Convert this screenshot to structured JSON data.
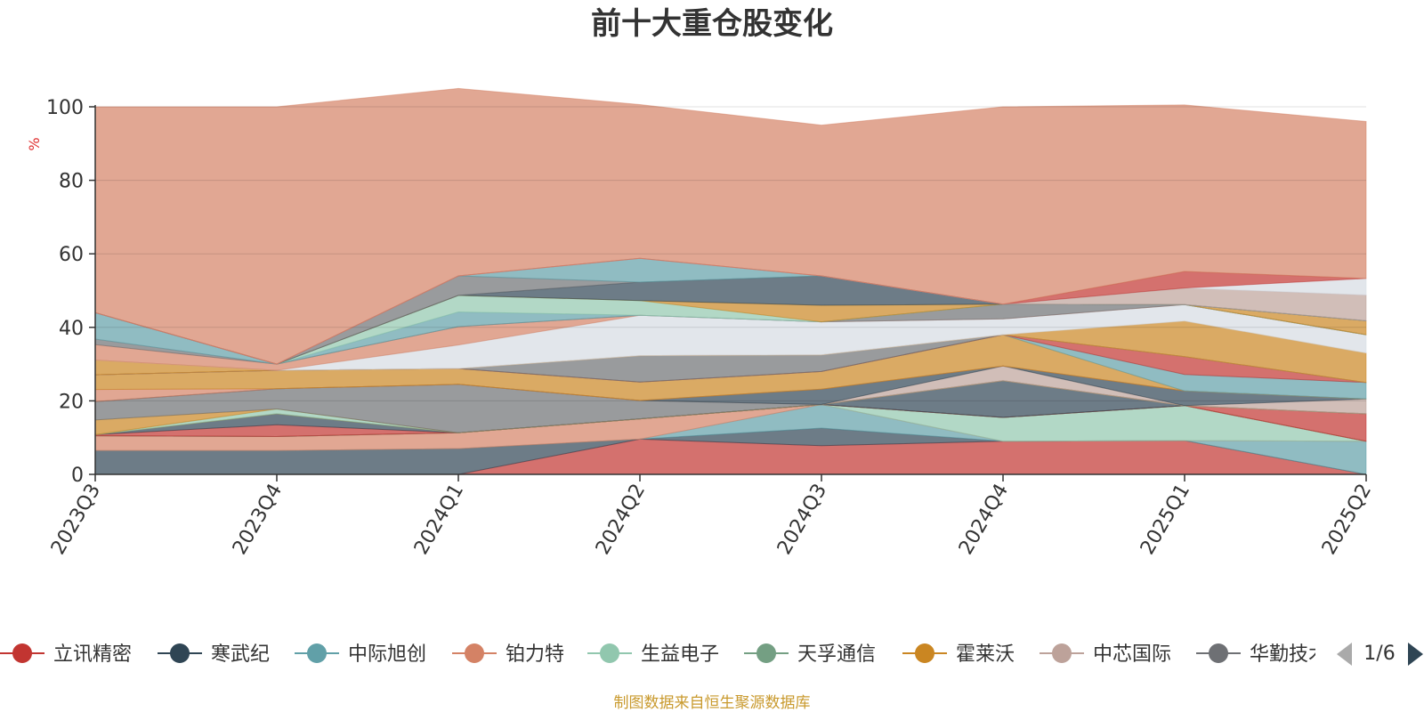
{
  "chart_data": {
    "type": "area",
    "stacked": true,
    "title": "前十大重仓股变化",
    "ylabel": "%",
    "ylim": [
      0,
      100
    ],
    "yticks": [
      0,
      20,
      40,
      60,
      80,
      100
    ],
    "grid": true,
    "categories": [
      "2023Q3",
      "2023Q4",
      "2024Q1",
      "2024Q2",
      "2024Q3",
      "2024Q4",
      "2025Q1",
      "2025Q2"
    ],
    "series": [
      {
        "name": "立讯精密",
        "color": "#c23531",
        "values": [
          0,
          0,
          0,
          9.6,
          7.8,
          9.0,
          9.2,
          0
        ]
      },
      {
        "name": "寒武纪",
        "color": "#2f4554",
        "values": [
          6.5,
          6.5,
          7.0,
          0,
          4.8,
          0,
          0,
          0
        ]
      },
      {
        "name": "中际旭创",
        "color": "#61a0a8",
        "values": [
          0,
          0,
          0,
          0,
          6.4,
          0,
          0,
          9.0
        ]
      },
      {
        "name": "铂力特",
        "color": "#d48265",
        "values": [
          4.0,
          3.8,
          4.3,
          5.5,
          0,
          0,
          0,
          0
        ]
      },
      {
        "name": "生益电子",
        "color": "#91c7ae",
        "values": [
          0,
          0,
          0,
          0,
          0,
          6.5,
          9.5,
          0
        ]
      },
      {
        "name": "天孚通信",
        "color": "#749f83",
        "values": [
          0,
          0,
          0,
          0,
          0,
          0,
          0,
          0
        ]
      },
      {
        "name": "霍莱沃",
        "color": "#ca8622",
        "values": [
          0,
          0,
          0,
          0,
          0,
          0,
          0,
          0
        ]
      },
      {
        "name": "中芯国际",
        "color": "#bda29a",
        "values": [
          0,
          0,
          0,
          0,
          0,
          0,
          0,
          0
        ]
      },
      {
        "name": "华勤技术",
        "color": "#6e7074",
        "values": [
          0,
          0,
          0,
          0,
          0,
          0,
          0,
          0
        ]
      },
      {
        "name": "—",
        "color": "#c23531",
        "values": [
          0.3,
          3.2,
          0,
          0,
          0,
          0,
          0,
          7.5
        ]
      },
      {
        "name": "—",
        "color": "#2f4554",
        "values": [
          0,
          3.0,
          0,
          0,
          0,
          10.0,
          0,
          0
        ]
      },
      {
        "name": "—",
        "color": "#ca8622",
        "values": [
          0,
          0,
          0,
          0,
          0,
          0,
          0,
          0
        ]
      },
      {
        "name": "—",
        "color": "#91c7ae",
        "values": [
          0,
          1.3,
          0,
          0,
          0,
          0,
          0,
          0
        ]
      },
      {
        "name": "—",
        "color": "#ca8622",
        "values": [
          4.0,
          0,
          0,
          0,
          0,
          0,
          0,
          0
        ]
      },
      {
        "name": "—",
        "color": "#6e7074",
        "values": [
          5.0,
          5.5,
          13.2,
          5.0,
          0,
          0,
          0,
          0
        ]
      },
      {
        "name": "—",
        "color": "#bda29a",
        "values": [
          0,
          0,
          0,
          0,
          0,
          4.0,
          0,
          4.0
        ]
      },
      {
        "name": "—",
        "color": "#2f4554",
        "values": [
          0,
          0,
          0,
          0,
          4.2,
          0,
          4.0,
          0
        ]
      },
      {
        "name": "—",
        "color": "#d48265",
        "values": [
          3.3,
          0,
          0,
          0,
          0,
          0,
          0,
          0
        ]
      },
      {
        "name": "—",
        "color": "#ca8622",
        "values": [
          4.0,
          5.0,
          4.3,
          5.0,
          4.8,
          8.5,
          0,
          0
        ]
      },
      {
        "name": "—",
        "color": "#61a0a8",
        "values": [
          0,
          0,
          0,
          0,
          0,
          0,
          4.5,
          4.5
        ]
      },
      {
        "name": "—",
        "color": "#c23531",
        "values": [
          0,
          0,
          0,
          0,
          0,
          0,
          4.8,
          0
        ]
      },
      {
        "name": "—",
        "color": "#6e7074",
        "values": [
          0,
          0,
          0,
          7.2,
          4.5,
          0,
          0,
          0
        ]
      },
      {
        "name": "—",
        "color": "#bda29a",
        "values": [
          0,
          0,
          0,
          0,
          0,
          0,
          0,
          0
        ]
      },
      {
        "name": "—",
        "color": "#ca8622",
        "values": [
          4.0,
          0,
          0,
          0,
          0,
          0,
          9.7,
          8.0
        ]
      },
      {
        "name": "—",
        "color": "#d5dbe3",
        "values": [
          0,
          0,
          6.4,
          11.0,
          9.0,
          4.3,
          4.5,
          5.0
        ]
      },
      {
        "name": "—",
        "color": "#d48265",
        "values": [
          4.2,
          1.7,
          5.0,
          0,
          0,
          0,
          0,
          0
        ]
      },
      {
        "name": "—",
        "color": "#6e7074",
        "values": [
          1.5,
          0,
          0,
          0,
          0,
          4.0,
          0,
          0
        ]
      },
      {
        "name": "—",
        "color": "#61a0a8",
        "values": [
          7.2,
          0,
          4.0,
          0,
          0,
          0,
          0,
          0
        ]
      },
      {
        "name": "—",
        "color": "#91c7ae",
        "values": [
          0,
          0,
          4.5,
          4.0,
          0,
          0,
          0,
          0
        ]
      },
      {
        "name": "—",
        "color": "#ca8622",
        "values": [
          0,
          0,
          0,
          0,
          4.5,
          0,
          0,
          3.8
        ]
      },
      {
        "name": "—",
        "color": "#2f4554",
        "values": [
          0,
          0,
          0,
          5.0,
          8.0,
          0,
          0,
          0
        ]
      },
      {
        "name": "—",
        "color": "#6e7074",
        "values": [
          0,
          0,
          5.3,
          0,
          0,
          0,
          0,
          0
        ]
      },
      {
        "name": "—",
        "color": "#61a0a8",
        "values": [
          0,
          0,
          0,
          6.5,
          0,
          0,
          0,
          0
        ]
      },
      {
        "name": "—",
        "color": "#bda29a",
        "values": [
          0,
          0,
          0,
          0,
          0,
          0,
          4.5,
          7.0
        ]
      },
      {
        "name": "—",
        "color": "#d5dbe3",
        "values": [
          0,
          0,
          0,
          0,
          0,
          0,
          0,
          4.5
        ]
      },
      {
        "name": "—",
        "color": "#c23531",
        "values": [
          0,
          0,
          0,
          0,
          0,
          0,
          4.5,
          0
        ]
      },
      {
        "name": "—",
        "color": "#d48265",
        "values": [
          56.0,
          70.0,
          51.0,
          41.8,
          41.0,
          53.7,
          45.3,
          42.7
        ]
      }
    ],
    "legend": {
      "position": "bottom",
      "items": [
        "立讯精密",
        "寒武纪",
        "中际旭创",
        "铂力特",
        "生益电子",
        "天孚通信",
        "霍莱沃",
        "中芯国际",
        "华勤技术"
      ],
      "page": "1/6"
    }
  },
  "footer": {
    "source": "制图数据来自恒生聚源数据库"
  },
  "colors": {
    "axis": "#333333",
    "grid": "#e0e0e0",
    "unit": "#e03030",
    "source": "#c99a2e",
    "pager_active": "#2f4554",
    "pager_inactive": "#aaaaaa"
  }
}
